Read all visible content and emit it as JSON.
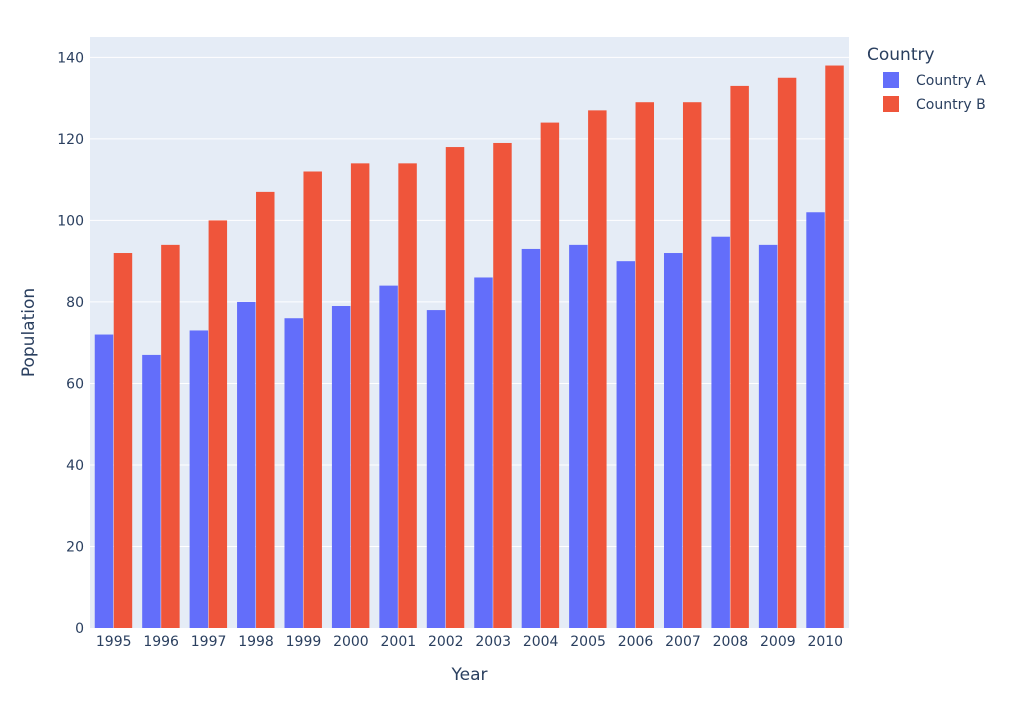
{
  "chart_data": {
    "type": "bar",
    "title": "",
    "xlabel": "Year",
    "ylabel": "Population",
    "categories": [
      "1995",
      "1996",
      "1997",
      "1998",
      "1999",
      "2000",
      "2001",
      "2002",
      "2003",
      "2004",
      "2005",
      "2006",
      "2007",
      "2008",
      "2009",
      "2010"
    ],
    "ylim": [
      0,
      145
    ],
    "yticks": [
      0,
      20,
      40,
      60,
      80,
      100,
      120,
      140
    ],
    "grid": true,
    "legend": {
      "title": "Country",
      "placement": "top-right"
    },
    "series": [
      {
        "name": "Country A",
        "color": "#636efa",
        "values": [
          72,
          67,
          73,
          80,
          76,
          79,
          84,
          78,
          86,
          93,
          94,
          90,
          92,
          96,
          94,
          102
        ]
      },
      {
        "name": "Country B",
        "color": "#ef553b",
        "values": [
          92,
          94,
          100,
          107,
          112,
          114,
          114,
          118,
          119,
          124,
          127,
          129,
          129,
          133,
          135,
          138
        ]
      }
    ],
    "plot_background": "#e5ecf6",
    "grid_color": "#ffffff",
    "text_color": "#2a3f5f"
  }
}
